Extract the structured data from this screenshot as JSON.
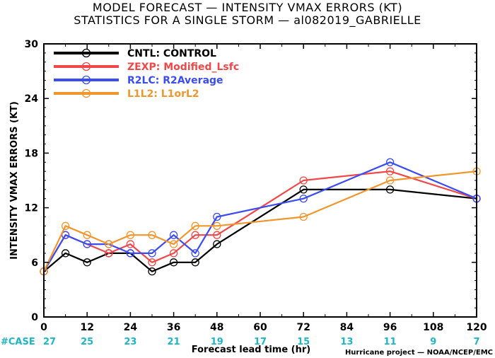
{
  "title_line1": "MODEL FORECAST — INTENSITY VMAX ERRORS (KT)",
  "title_line2": "STATISTICS FOR A SINGLE STORM — al082019_GABRIELLE",
  "credit": "Hurricane project — NOAA/NCEP/EMC",
  "case_label": "#CASE",
  "chart_data": {
    "type": "line",
    "xlabel": "Forecast lead time (hr)",
    "ylabel": "INTENSITY VMAX ERRORS (KT)",
    "xlim": [
      0,
      120
    ],
    "ylim": [
      0,
      30
    ],
    "x_ticks": [
      0,
      12,
      24,
      36,
      48,
      60,
      72,
      84,
      96,
      108,
      120
    ],
    "y_ticks": [
      0,
      6,
      12,
      18,
      24,
      30
    ],
    "grid": false,
    "legend_position": "top-left",
    "cases": {
      "x": [
        0,
        12,
        24,
        36,
        48,
        60,
        72,
        84,
        96,
        108,
        120
      ],
      "values": [
        27,
        25,
        23,
        21,
        19,
        17,
        15,
        13,
        11,
        9,
        7
      ],
      "color": "#1fb5c4"
    },
    "series": [
      {
        "name": "CNTL: CONTROL",
        "color": "#000000",
        "x": [
          0,
          6,
          12,
          18,
          24,
          30,
          36,
          42,
          48,
          72,
          96,
          120
        ],
        "values": [
          5,
          7,
          6,
          7,
          7,
          5,
          6,
          6,
          8,
          14,
          14,
          13
        ]
      },
      {
        "name": "ZEXP: Modified_Lsfc",
        "color": "#f04848",
        "x": [
          0,
          6,
          12,
          18,
          24,
          30,
          36,
          42,
          48,
          72,
          96,
          120
        ],
        "values": [
          5,
          9,
          8,
          7,
          8,
          6,
          7,
          9,
          9,
          15,
          16,
          13
        ]
      },
      {
        "name": "R2LC: R2Average",
        "color": "#3b4cf0",
        "x": [
          0,
          6,
          12,
          18,
          24,
          30,
          36,
          42,
          48,
          72,
          96,
          120
        ],
        "values": [
          5,
          9,
          8,
          8,
          7,
          7,
          9,
          7,
          11,
          13,
          17,
          13
        ]
      },
      {
        "name": "L1L2: L1orL2",
        "color": "#f0962e",
        "x": [
          0,
          6,
          12,
          18,
          24,
          30,
          36,
          42,
          48,
          72,
          96,
          120
        ],
        "values": [
          5,
          10,
          9,
          8,
          9,
          9,
          8,
          10,
          10,
          11,
          15,
          16
        ]
      }
    ]
  }
}
